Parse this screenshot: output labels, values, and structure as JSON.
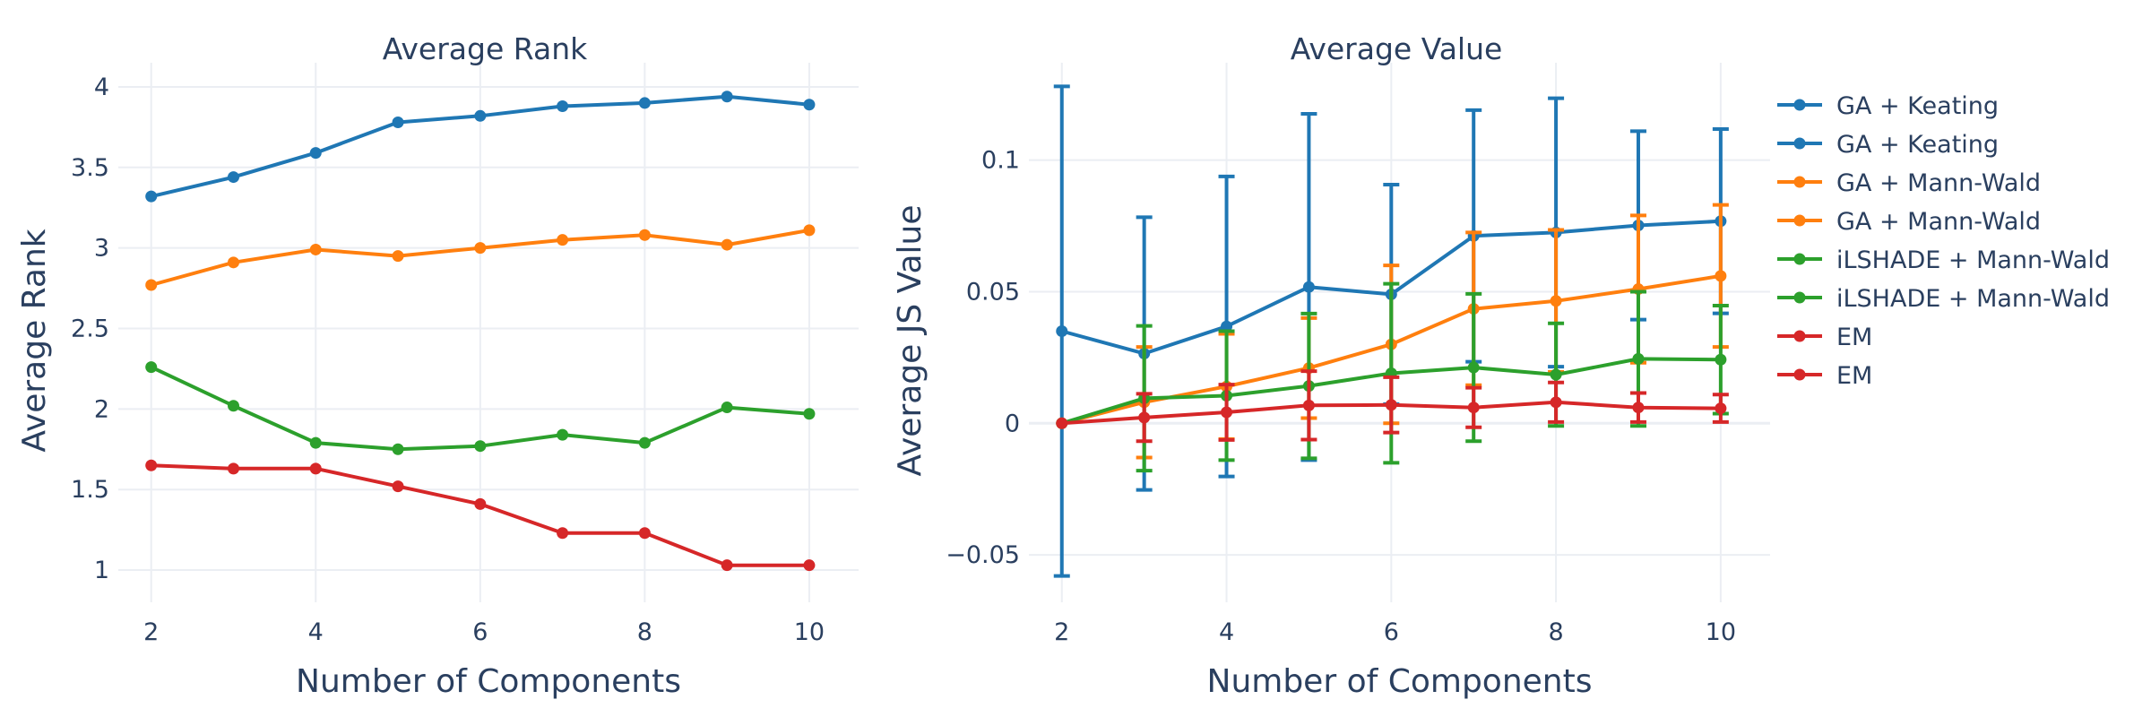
{
  "chart_data": [
    {
      "type": "line",
      "title": "Average Rank",
      "xlabel": "Number of Components",
      "ylabel": "Average Rank",
      "xlim": [
        1.6,
        10.6
      ],
      "ylim": [
        0.8,
        4.15
      ],
      "xticks": [
        "2",
        "4",
        "6",
        "8",
        "10"
      ],
      "yticks": [
        "1",
        "1.5",
        "2",
        "2.5",
        "3",
        "3.5",
        "4"
      ],
      "grid": true,
      "x": [
        2,
        3,
        4,
        5,
        6,
        7,
        8,
        9,
        10
      ],
      "series": [
        {
          "name": "GA + Keating",
          "color": "#1f77b4",
          "values": [
            3.32,
            3.44,
            3.59,
            3.78,
            3.82,
            3.88,
            3.9,
            3.94,
            3.89
          ]
        },
        {
          "name": "GA + Mann-Wald",
          "color": "#ff7f0e",
          "values": [
            2.77,
            2.91,
            2.99,
            2.95,
            3.0,
            3.05,
            3.08,
            3.02,
            3.11
          ]
        },
        {
          "name": "iLSHADE + Mann-Wald",
          "color": "#2ca02c",
          "values": [
            2.26,
            2.02,
            1.79,
            1.75,
            1.77,
            1.84,
            1.79,
            2.01,
            1.97
          ]
        },
        {
          "name": "EM",
          "color": "#d62728",
          "values": [
            1.65,
            1.63,
            1.63,
            1.52,
            1.41,
            1.23,
            1.23,
            1.03,
            1.03
          ]
        }
      ]
    },
    {
      "type": "line",
      "title": "Average Value",
      "xlabel": "Number of Components",
      "ylabel": "Average JS Value",
      "xlim": [
        1.6,
        10.6
      ],
      "ylim": [
        -0.068,
        0.137
      ],
      "xticks": [
        "2",
        "4",
        "6",
        "8",
        "10"
      ],
      "yticks": [
        "−0.05",
        "0",
        "0.05",
        "0.1"
      ],
      "grid": true,
      "legend_position": "right",
      "x": [
        2,
        3,
        4,
        5,
        6,
        7,
        8,
        9,
        10
      ],
      "series": [
        {
          "name": "GA + Keating",
          "color": "#1f77b4",
          "values": [
            0.035,
            0.0265,
            0.0368,
            0.0518,
            0.049,
            0.0712,
            0.0725,
            0.0752,
            0.0768
          ],
          "error": [
            0.093,
            0.0518,
            0.057,
            0.0658,
            0.0417,
            0.0478,
            0.051,
            0.0358,
            0.035
          ]
        },
        {
          "name": "GA + Mann-Wald",
          "color": "#ff7f0e",
          "values": [
            0.0,
            0.008,
            0.014,
            0.021,
            0.03,
            0.0435,
            0.0465,
            0.051,
            0.056
          ],
          "error": [
            0.0,
            0.021,
            0.02,
            0.019,
            0.03,
            0.029,
            0.027,
            0.028,
            0.027
          ]
        },
        {
          "name": "iLSHADE + Mann-Wald",
          "color": "#2ca02c",
          "values": [
            0.0,
            0.0095,
            0.0105,
            0.0142,
            0.019,
            0.0212,
            0.0185,
            0.0245,
            0.0242
          ],
          "error": [
            0.0,
            0.0275,
            0.0245,
            0.0275,
            0.034,
            0.028,
            0.0195,
            0.0255,
            0.0205
          ]
        },
        {
          "name": "EM",
          "color": "#d62728",
          "values": [
            0.0,
            0.0022,
            0.0042,
            0.0068,
            0.007,
            0.006,
            0.008,
            0.006,
            0.0057
          ],
          "error": [
            0.0,
            0.009,
            0.0105,
            0.013,
            0.0105,
            0.0075,
            0.0075,
            0.0055,
            0.0052
          ]
        }
      ]
    }
  ],
  "legend": {
    "entries": [
      {
        "label": "GA + Keating",
        "color": "#1f77b4"
      },
      {
        "label": "GA + Keating",
        "color": "#1f77b4"
      },
      {
        "label": "GA + Mann-Wald",
        "color": "#ff7f0e"
      },
      {
        "label": "GA + Mann-Wald",
        "color": "#ff7f0e"
      },
      {
        "label": "iLSHADE + Mann-Wald",
        "color": "#2ca02c"
      },
      {
        "label": "iLSHADE + Mann-Wald",
        "color": "#2ca02c"
      },
      {
        "label": "EM",
        "color": "#d62728"
      },
      {
        "label": "EM",
        "color": "#d62728"
      }
    ]
  }
}
